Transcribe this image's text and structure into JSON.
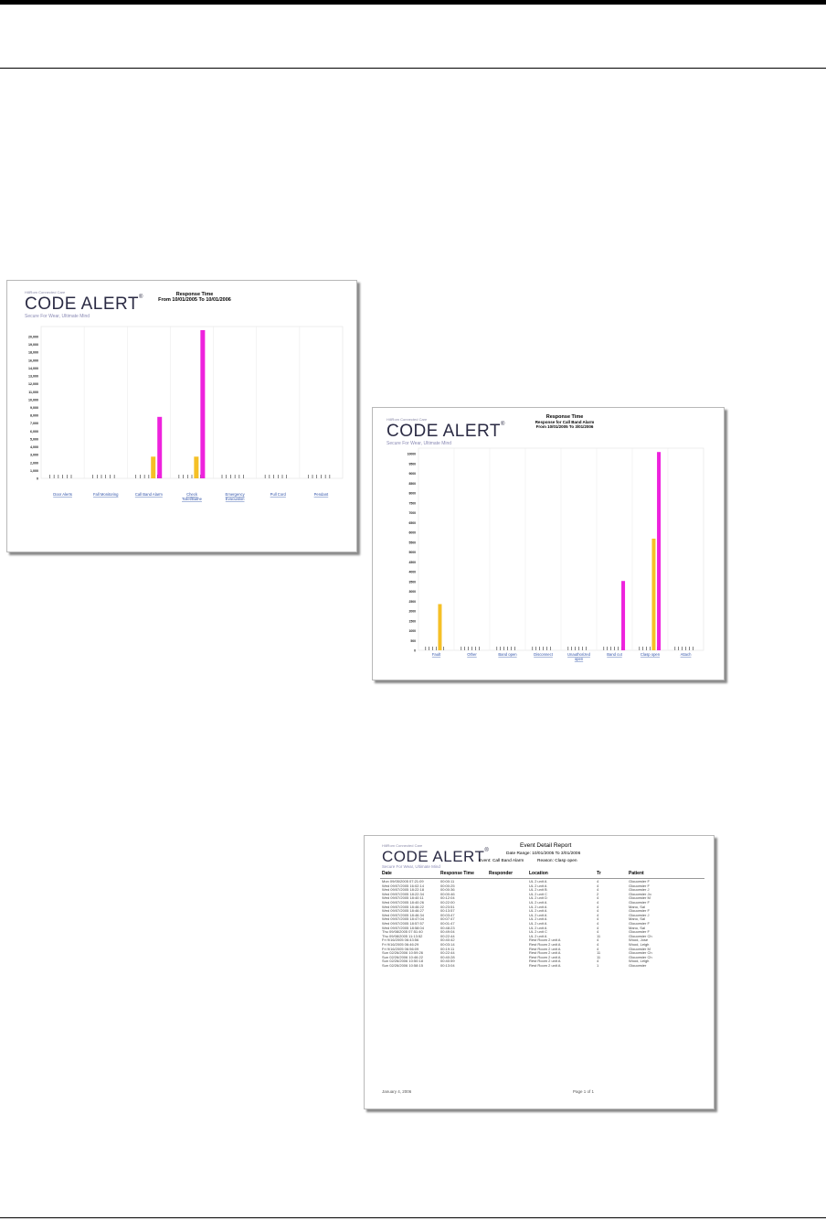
{
  "screenshots": [
    {
      "logo": {
        "small": "HillRom Connected Care",
        "name": "CODE ALERT",
        "tm": "®",
        "tagline": "Secure For Wear, Ultimate Mind"
      },
      "title": "Response Time",
      "subtitle": "From 10/01/2005 To 10/01/2006",
      "chart_data": {
        "type": "bar",
        "categories": [
          "Door Alerts",
          "Fall Monitoring",
          "Call Band Alarm",
          "Check Toilet/Bathe",
          "Emergency Evacuation",
          "Pull Cord",
          "Pendant"
        ],
        "series": [
          {
            "values": [
              0,
              0,
              3000,
              3000,
              0,
              0,
              0
            ],
            "color": "#f5c026"
          },
          {
            "values": [
              0,
              0,
              8500,
              20500,
              0,
              0,
              0
            ],
            "color": "#ee22dd"
          }
        ],
        "yticks": [
          "20,000",
          "19,000",
          "18,000",
          "16,000",
          "14,000",
          "13,000",
          "12,000",
          "11,000",
          "10,000",
          "9,000",
          "8,000",
          "7,000",
          "6,000",
          "5,000",
          "4,000",
          "3,000",
          "2,000",
          "1,000",
          "0"
        ],
        "ylim": [
          0,
          21000
        ]
      }
    },
    {
      "logo": {
        "small": "HillRom Connected Care",
        "name": "CODE ALERT",
        "tm": "®",
        "tagline": "Secure For Wear, Ultimate Mind"
      },
      "title": "Response Time",
      "subtitle": "Response for Call Band Alarm",
      "subtitle2": "From 10/01/2005 To 3/01/2006",
      "chart_data": {
        "type": "bar",
        "categories": [
          "Fault",
          "Other",
          "Band open",
          "Disconnect",
          "Unauthorized open",
          "Band cut",
          "Clasp open",
          "Attach"
        ],
        "series": [
          {
            "values": [
              2400,
              0,
              0,
              0,
              0,
              0,
              5800,
              0
            ],
            "color": "#f5c026"
          },
          {
            "values": [
              0,
              0,
              0,
              0,
              0,
              3600,
              10300,
              0
            ],
            "color": "#ee22dd"
          }
        ],
        "yticks": [
          "10000",
          "9500",
          "9000",
          "8500",
          "8000",
          "7500",
          "7000",
          "6500",
          "6000",
          "5500",
          "5000",
          "4500",
          "4000",
          "3500",
          "3000",
          "2500",
          "2000",
          "1500",
          "1000",
          "500",
          "0"
        ],
        "ylim": [
          0,
          10500
        ]
      }
    }
  ],
  "report": {
    "logo": {
      "small": "HillRom Connected Care",
      "name": "CODE ALERT",
      "tm": "®",
      "tagline": "Secure For Wear, Ultimate Mind"
    },
    "title": "Event Detail Report",
    "date_range": "Date Range: 10/01/2005 To 3/01/2006",
    "event_label": "Event:",
    "event_value": "Call Band Alarm",
    "reason_label": "Reason:",
    "reason_value": "Clasp open",
    "columns": [
      "Date",
      "Response Time",
      "Responder",
      "Location",
      "Tr",
      "Patient"
    ],
    "rows": [
      [
        "Mon 09/05/2005 07:21:09",
        "00:00:11",
        "",
        "UL 2 unit A",
        "4",
        "Gloucester F"
      ],
      [
        "Wed 09/07/2005 16:02:14",
        "00:00:25",
        "",
        "UL 2 unit A",
        "4",
        "Gloucester F"
      ],
      [
        "Wed 09/07/2005 18:22:18",
        "00:00:36",
        "",
        "UL 2 unit B",
        "4",
        "Gloucester J"
      ],
      [
        "Wed 09/07/2005 18:22:34",
        "00:00:46",
        "",
        "UL 2 unit C",
        "2",
        "Gloucester Jo"
      ],
      [
        "Wed 09/07/2005 18:40:11",
        "00:12:04",
        "",
        "UL 2 unit D",
        "4",
        "Gloucester M"
      ],
      [
        "Wed 09/07/2005 18:40:26",
        "00:22:00",
        "",
        "UL 2 unit A",
        "4",
        "Gloucester F"
      ],
      [
        "Wed 09/07/2005 18:46:22",
        "00:23:51",
        "",
        "UL 2 unit A",
        "4",
        "Mano, Sal"
      ],
      [
        "Wed 09/07/2005 18:46:27",
        "00:13:57",
        "",
        "UL 2 unit A",
        "4",
        "Gloucester F"
      ],
      [
        "Wed 09/07/2005 18:46:34",
        "00:03:47",
        "",
        "UL 2 unit A",
        "4",
        "Gloucester J"
      ],
      [
        "Wed 09/07/2005 18:47:04",
        "00:07:47",
        "",
        "UL 2 unit A",
        "4",
        "Mano, Sal"
      ],
      [
        "Wed 09/07/2005 18:57:57",
        "00:01:47",
        "",
        "UL 2 unit A",
        "4",
        "Gloucester F"
      ],
      [
        "Wed 09/07/2005 18:58:04",
        "00:48:23",
        "",
        "UL 2 unit A",
        "4",
        "Mano, Sal"
      ],
      [
        "Thu 09/08/2005 07:51:40",
        "00:49:04",
        "",
        "UL 2 unit C",
        "4",
        "Gloucester F"
      ],
      [
        "Thu 09/08/2005 11:13:52",
        "00:22:44",
        "",
        "UL 2 unit A",
        "11",
        "Gloucester Ch"
      ],
      [
        "Fri 9/16/2005 06:43:56",
        "00:40:42",
        "",
        "Rest Room 2 unit A",
        "4",
        "Wood, Jose"
      ],
      [
        "Fri 9/16/2005 06:46:29",
        "00:03:14",
        "",
        "Rest Room 2 unit A",
        "4",
        "Wood, Leigh"
      ],
      [
        "Fri 9/16/2005 06:56:09",
        "00:19:11",
        "",
        "Rest Room 2 unit A",
        "4",
        "Gloucester M"
      ],
      [
        "Sun 02/26/2006 10:59:26",
        "00:22:44",
        "",
        "Rest Room 2 unit A",
        "11",
        "Gloucester Ch"
      ],
      [
        "Sun 02/26/2006 10:46:22",
        "00:40:28",
        "",
        "Rest Room 2 unit A",
        "11",
        "Gloucester Ch"
      ],
      [
        "Sun 02/26/2006 10:50:18",
        "00:40:59",
        "",
        "Rest Room 2 unit A",
        "4",
        "Wood, Leigh"
      ],
      [
        "Sun 02/26/2006 10:58:15",
        "00:13:04",
        "",
        "Rest Room 2 unit A",
        "1",
        "Gloucester"
      ]
    ],
    "footer_left": "January 4, 2006",
    "footer_right": "Page 1 of 1"
  }
}
